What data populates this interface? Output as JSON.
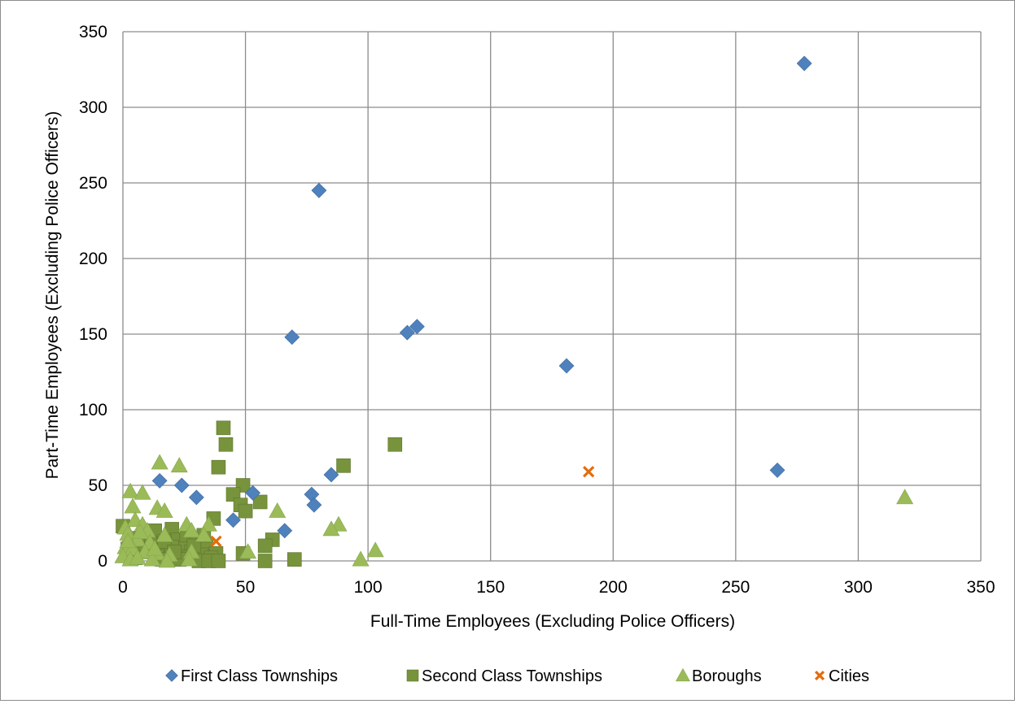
{
  "chart_data": {
    "type": "scatter",
    "title": "",
    "xlabel": "Full-Time Employees (Excluding Police Officers)",
    "ylabel": "Part-Time Employees (Excluding Police Officers)",
    "xlim": [
      0,
      350
    ],
    "ylim": [
      0,
      350
    ],
    "x_ticks": [
      "0",
      "50",
      "100",
      "150",
      "200",
      "250",
      "300",
      "350"
    ],
    "y_ticks": [
      "0",
      "50",
      "100",
      "150",
      "200",
      "250",
      "300",
      "350"
    ],
    "grid": true,
    "legend_position": "bottom",
    "series": [
      {
        "name": "First Class Townships",
        "marker": "diamond",
        "color": "#4f81bd",
        "points": [
          [
            278,
            329
          ],
          [
            80,
            245
          ],
          [
            116,
            151
          ],
          [
            120,
            155
          ],
          [
            69,
            148
          ],
          [
            181,
            129
          ],
          [
            267,
            60
          ],
          [
            85,
            57
          ],
          [
            15,
            53
          ],
          [
            24,
            50
          ],
          [
            53,
            45
          ],
          [
            77,
            44
          ],
          [
            30,
            42
          ],
          [
            78,
            37
          ],
          [
            45,
            27
          ],
          [
            66,
            20
          ]
        ]
      },
      {
        "name": "Second Class Townships",
        "marker": "square",
        "color": "#77933c",
        "points": [
          [
            41,
            88
          ],
          [
            42,
            77
          ],
          [
            111,
            77
          ],
          [
            90,
            63
          ],
          [
            39,
            62
          ],
          [
            49,
            50
          ],
          [
            45,
            44
          ],
          [
            56,
            39
          ],
          [
            48,
            37
          ],
          [
            50,
            33
          ],
          [
            37,
            28
          ],
          [
            0,
            23
          ],
          [
            20,
            21
          ],
          [
            61,
            14
          ],
          [
            58,
            10
          ],
          [
            12,
            16
          ],
          [
            15,
            12
          ],
          [
            22,
            14
          ],
          [
            26,
            15
          ],
          [
            30,
            12
          ],
          [
            34,
            10
          ],
          [
            38,
            5
          ],
          [
            25,
            8
          ],
          [
            28,
            6
          ],
          [
            32,
            4
          ],
          [
            36,
            2
          ],
          [
            18,
            5
          ],
          [
            20,
            9
          ],
          [
            24,
            3
          ],
          [
            27,
            2
          ],
          [
            31,
            0
          ],
          [
            35,
            0
          ],
          [
            39,
            0
          ],
          [
            49,
            5
          ],
          [
            58,
            0
          ],
          [
            70,
            1
          ],
          [
            10,
            6
          ],
          [
            14,
            3
          ],
          [
            8,
            10
          ],
          [
            5,
            2
          ],
          [
            2,
            8
          ],
          [
            16,
            1
          ],
          [
            23,
            1
          ],
          [
            29,
            10
          ],
          [
            33,
            17
          ],
          [
            13,
            20
          ],
          [
            17,
            13
          ],
          [
            21,
            6
          ],
          [
            11,
            12
          ],
          [
            6,
            15
          ]
        ]
      },
      {
        "name": "Boroughs",
        "marker": "triangle",
        "color": "#9bbb59",
        "points": [
          [
            15,
            65
          ],
          [
            23,
            63
          ],
          [
            3,
            46
          ],
          [
            8,
            45
          ],
          [
            4,
            36
          ],
          [
            14,
            35
          ],
          [
            17,
            33
          ],
          [
            63,
            33
          ],
          [
            5,
            27
          ],
          [
            8,
            24
          ],
          [
            26,
            24
          ],
          [
            35,
            24
          ],
          [
            88,
            24
          ],
          [
            85,
            21
          ],
          [
            1,
            22
          ],
          [
            28,
            20
          ],
          [
            10,
            20
          ],
          [
            2,
            18
          ],
          [
            17,
            17
          ],
          [
            6,
            14
          ],
          [
            11,
            12
          ],
          [
            1,
            9
          ],
          [
            33,
            17
          ],
          [
            4,
            8
          ],
          [
            9,
            6
          ],
          [
            14,
            5
          ],
          [
            19,
            4
          ],
          [
            28,
            6
          ],
          [
            51,
            6
          ],
          [
            103,
            7
          ],
          [
            97,
            1
          ],
          [
            0,
            3
          ],
          [
            3,
            1
          ],
          [
            6,
            2
          ],
          [
            12,
            1
          ],
          [
            18,
            0
          ],
          [
            27,
            1
          ],
          [
            13,
            8
          ],
          [
            7,
            19
          ],
          [
            2,
            13
          ],
          [
            319,
            42
          ]
        ]
      },
      {
        "name": "Cities",
        "marker": "x",
        "color": "#e46c0a",
        "points": [
          [
            190,
            59
          ],
          [
            38,
            13
          ]
        ]
      }
    ]
  }
}
